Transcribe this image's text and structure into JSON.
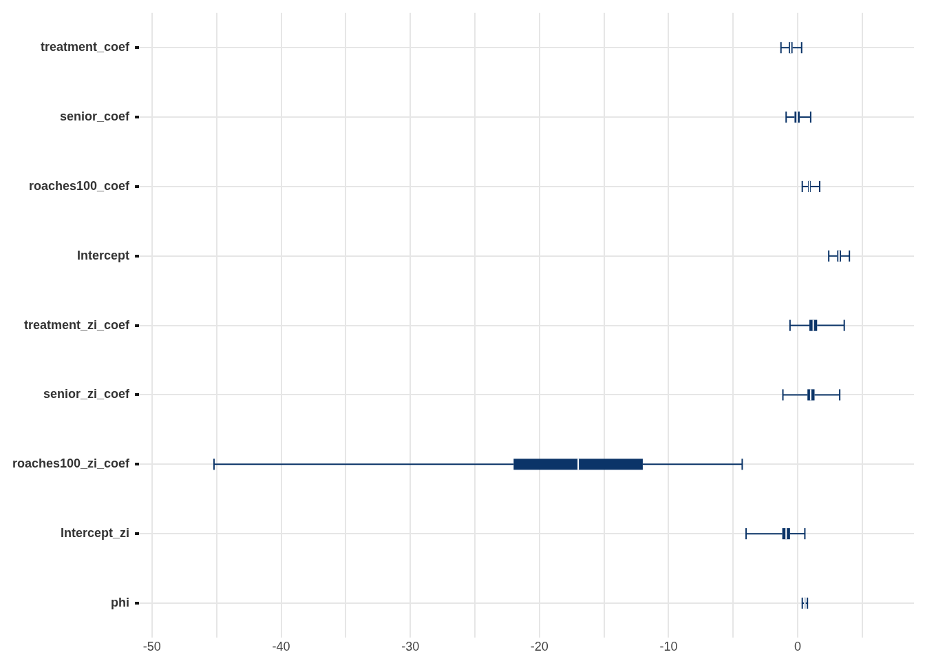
{
  "chart_data": {
    "type": "box",
    "orientation": "horizontal",
    "color": "#0b3468",
    "categories": [
      "treatment_coef",
      "senior_coef",
      "roaches100_coef",
      "Intercept",
      "treatment_zi_coef",
      "senior_zi_coef",
      "roaches100_zi_coef",
      "Intercept_zi",
      "phi"
    ],
    "boxes": [
      {
        "low": -1.3,
        "q1": -0.7,
        "median": -0.55,
        "q3": -0.4,
        "high": 0.3
      },
      {
        "low": -0.9,
        "q1": -0.25,
        "median": -0.05,
        "q3": 0.15,
        "high": 1.0
      },
      {
        "low": 0.35,
        "q1": 0.8,
        "median": 0.9,
        "q3": 1.0,
        "high": 1.7
      },
      {
        "low": 2.4,
        "q1": 3.05,
        "median": 3.2,
        "q3": 3.35,
        "high": 4.0
      },
      {
        "low": -0.6,
        "q1": 0.9,
        "median": 1.2,
        "q3": 1.5,
        "high": 3.6
      },
      {
        "low": -1.15,
        "q1": 0.75,
        "median": 1.0,
        "q3": 1.3,
        "high": 3.25
      },
      {
        "low": -45.2,
        "q1": -22,
        "median": -17,
        "q3": -12,
        "high": -4.3
      },
      {
        "low": -4.0,
        "q1": -1.2,
        "median": -0.9,
        "q3": -0.6,
        "high": 0.55
      },
      {
        "low": 0.35,
        "q1": 0.5,
        "median": 0.55,
        "q3": 0.6,
        "high": 0.75
      }
    ],
    "xlim": [
      -51,
      9
    ],
    "xticks": [
      -50,
      {
        "value": -45,
        "label": null
      },
      -40,
      {
        "value": -35,
        "label": null
      },
      -30,
      {
        "value": -25,
        "label": null
      },
      -20,
      {
        "value": -15,
        "label": null
      },
      -10,
      {
        "value": -5,
        "label": null
      },
      0,
      {
        "value": 5,
        "label": null
      }
    ],
    "grid": true,
    "legend": false
  }
}
